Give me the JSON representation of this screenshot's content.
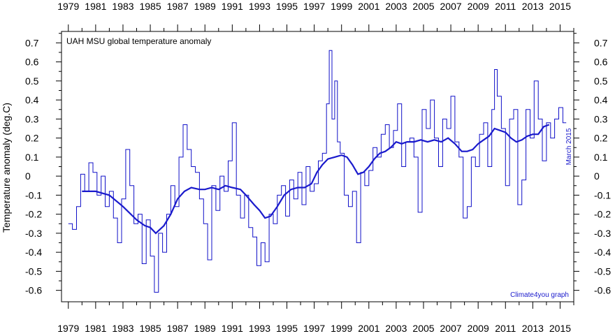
{
  "chart_data": {
    "type": "line",
    "title": "UAH MSU global temperature anomaly",
    "ylabel": "Temperature anomaly (deg.C)",
    "xlabel": "",
    "annotation_date": "March 2015",
    "credit": "Climate4you graph",
    "xlim": [
      1978.5,
      2016.0
    ],
    "ylim": [
      -0.66,
      0.76
    ],
    "x_ticks": [
      "1979",
      "1981",
      "1983",
      "1985",
      "1987",
      "1989",
      "1991",
      "1993",
      "1995",
      "1997",
      "1999",
      "2001",
      "2003",
      "2005",
      "2007",
      "2009",
      "2011",
      "2013",
      "2015"
    ],
    "y_ticks": [
      "0.7",
      "0.6",
      "0.5",
      "0.4",
      "0.3",
      "0.2",
      "0.1",
      "0",
      "-0.1",
      "-0.2",
      "-0.3",
      "-0.4",
      "-0.5",
      "-0.6"
    ],
    "series": [
      {
        "name": "",
        "style": "monthly-step",
        "color": "#1010c8",
        "x": [
          1979.0,
          1979.3,
          1979.6,
          1979.9,
          1980.2,
          1980.5,
          1980.8,
          1981.1,
          1981.4,
          1981.7,
          1982.0,
          1982.3,
          1982.6,
          1982.9,
          1983.2,
          1983.5,
          1983.8,
          1984.1,
          1984.4,
          1984.7,
          1985.0,
          1985.3,
          1985.6,
          1985.9,
          1986.2,
          1986.5,
          1986.8,
          1987.1,
          1987.4,
          1987.7,
          1988.0,
          1988.3,
          1988.6,
          1988.9,
          1989.2,
          1989.5,
          1989.8,
          1990.1,
          1990.4,
          1990.7,
          1991.0,
          1991.3,
          1991.6,
          1991.9,
          1992.2,
          1992.5,
          1992.8,
          1993.1,
          1993.4,
          1993.7,
          1994.0,
          1994.3,
          1994.6,
          1994.9,
          1995.2,
          1995.5,
          1995.8,
          1996.1,
          1996.4,
          1996.7,
          1997.0,
          1997.3,
          1997.6,
          1997.9,
          1998.1,
          1998.3,
          1998.5,
          1998.7,
          1998.9,
          1999.2,
          1999.5,
          1999.8,
          2000.1,
          2000.4,
          2000.7,
          2001.0,
          2001.3,
          2001.6,
          2001.9,
          2002.2,
          2002.5,
          2002.8,
          2003.1,
          2003.4,
          2003.7,
          2004.0,
          2004.3,
          2004.6,
          2004.9,
          2005.2,
          2005.5,
          2005.8,
          2006.1,
          2006.4,
          2006.7,
          2007.0,
          2007.3,
          2007.6,
          2007.9,
          2008.2,
          2008.5,
          2008.8,
          2009.1,
          2009.4,
          2009.7,
          2010.0,
          2010.2,
          2010.4,
          2010.7,
          2011.0,
          2011.3,
          2011.6,
          2011.9,
          2012.2,
          2012.5,
          2012.8,
          2013.1,
          2013.4,
          2013.7,
          2014.0,
          2014.3,
          2014.6,
          2014.9,
          2015.2
        ],
        "values": [
          -0.25,
          -0.28,
          -0.16,
          0.01,
          -0.08,
          0.07,
          0.02,
          -0.1,
          0.0,
          -0.16,
          -0.08,
          -0.22,
          -0.35,
          -0.12,
          0.14,
          -0.05,
          -0.25,
          -0.2,
          -0.46,
          -0.23,
          -0.42,
          -0.61,
          -0.3,
          -0.4,
          -0.2,
          -0.05,
          -0.16,
          0.1,
          0.27,
          0.14,
          0.05,
          0.02,
          -0.12,
          -0.25,
          -0.44,
          -0.05,
          -0.18,
          0.0,
          -0.08,
          0.08,
          0.28,
          -0.1,
          -0.22,
          -0.1,
          -0.27,
          -0.32,
          -0.47,
          -0.35,
          -0.45,
          -0.2,
          -0.25,
          -0.1,
          -0.05,
          -0.21,
          -0.02,
          -0.12,
          0.02,
          -0.15,
          0.05,
          -0.08,
          -0.04,
          0.08,
          0.12,
          0.38,
          0.66,
          0.3,
          0.5,
          0.18,
          0.12,
          -0.1,
          -0.16,
          -0.08,
          -0.35,
          0.02,
          -0.05,
          0.03,
          0.15,
          0.1,
          0.22,
          0.27,
          0.15,
          0.24,
          0.38,
          0.05,
          0.18,
          0.2,
          0.1,
          -0.19,
          0.35,
          0.25,
          0.4,
          0.2,
          0.05,
          0.3,
          0.25,
          0.42,
          0.18,
          0.1,
          -0.22,
          -0.16,
          0.1,
          0.05,
          0.22,
          0.28,
          0.05,
          0.35,
          0.56,
          0.42,
          0.25,
          -0.05,
          0.3,
          0.35,
          -0.15,
          -0.02,
          0.35,
          0.2,
          0.5,
          0.3,
          0.08,
          0.28,
          0.2,
          0.3,
          0.36,
          0.28
        ]
      },
      {
        "name": "",
        "style": "running-mean",
        "color": "#1a1acc",
        "x": [
          1980.0,
          1981.0,
          1982.0,
          1983.0,
          1984.0,
          1984.6,
          1985.0,
          1985.4,
          1986.0,
          1986.5,
          1987.0,
          1987.5,
          1988.0,
          1988.6,
          1989.0,
          1989.5,
          1990.0,
          1990.5,
          1991.0,
          1991.6,
          1992.0,
          1992.6,
          1993.0,
          1993.4,
          1993.8,
          1994.3,
          1994.8,
          1995.3,
          1995.8,
          1996.3,
          1996.8,
          1997.2,
          1997.6,
          1998.0,
          1998.5,
          1999.0,
          1999.4,
          1999.8,
          2000.2,
          2000.6,
          2001.0,
          2001.4,
          2001.8,
          2002.2,
          2002.6,
          2003.0,
          2003.4,
          2003.8,
          2004.3,
          2004.8,
          2005.3,
          2005.8,
          2006.3,
          2006.8,
          2007.3,
          2007.8,
          2008.2,
          2008.6,
          2009.0,
          2009.4,
          2009.8,
          2010.2,
          2010.6,
          2011.0,
          2011.4,
          2011.8,
          2012.2,
          2012.6,
          2013.0,
          2013.4,
          2013.8,
          2014.2
        ],
        "values": [
          -0.08,
          -0.08,
          -0.1,
          -0.16,
          -0.23,
          -0.26,
          -0.27,
          -0.3,
          -0.26,
          -0.2,
          -0.12,
          -0.08,
          -0.06,
          -0.07,
          -0.07,
          -0.06,
          -0.07,
          -0.05,
          -0.06,
          -0.07,
          -0.1,
          -0.15,
          -0.18,
          -0.22,
          -0.21,
          -0.16,
          -0.1,
          -0.07,
          -0.06,
          -0.06,
          -0.04,
          0.02,
          0.06,
          0.09,
          0.1,
          0.11,
          0.1,
          0.06,
          0.01,
          0.02,
          0.05,
          0.09,
          0.12,
          0.13,
          0.15,
          0.18,
          0.17,
          0.18,
          0.18,
          0.19,
          0.18,
          0.19,
          0.18,
          0.2,
          0.17,
          0.13,
          0.13,
          0.14,
          0.17,
          0.19,
          0.21,
          0.25,
          0.24,
          0.23,
          0.2,
          0.18,
          0.19,
          0.21,
          0.22,
          0.22,
          0.26,
          0.27
        ]
      }
    ]
  }
}
